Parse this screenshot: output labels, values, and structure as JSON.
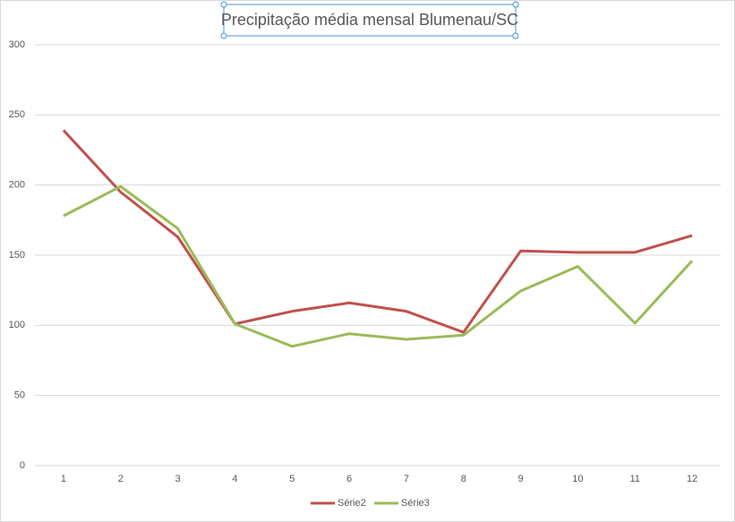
{
  "chart_data": {
    "type": "line",
    "title": "Precipitação média mensal Blumenau/SC",
    "categories": [
      1,
      2,
      3,
      4,
      5,
      6,
      7,
      8,
      9,
      10,
      11,
      12
    ],
    "series": [
      {
        "name": "Série2",
        "color": "#c0504d",
        "values": [
          239,
          195,
          163,
          101,
          110,
          116,
          110,
          95,
          153,
          152,
          152,
          164
        ]
      },
      {
        "name": "Série3",
        "color": "#9bbb59",
        "values": [
          178,
          199,
          169,
          101,
          85,
          94,
          90,
          93,
          124.5,
          142,
          101.5,
          146
        ]
      }
    ],
    "ylim": [
      0,
      300
    ],
    "yticks": [
      0,
      50,
      100,
      150,
      200,
      250,
      300
    ],
    "grid": true,
    "legend": "bottom"
  }
}
